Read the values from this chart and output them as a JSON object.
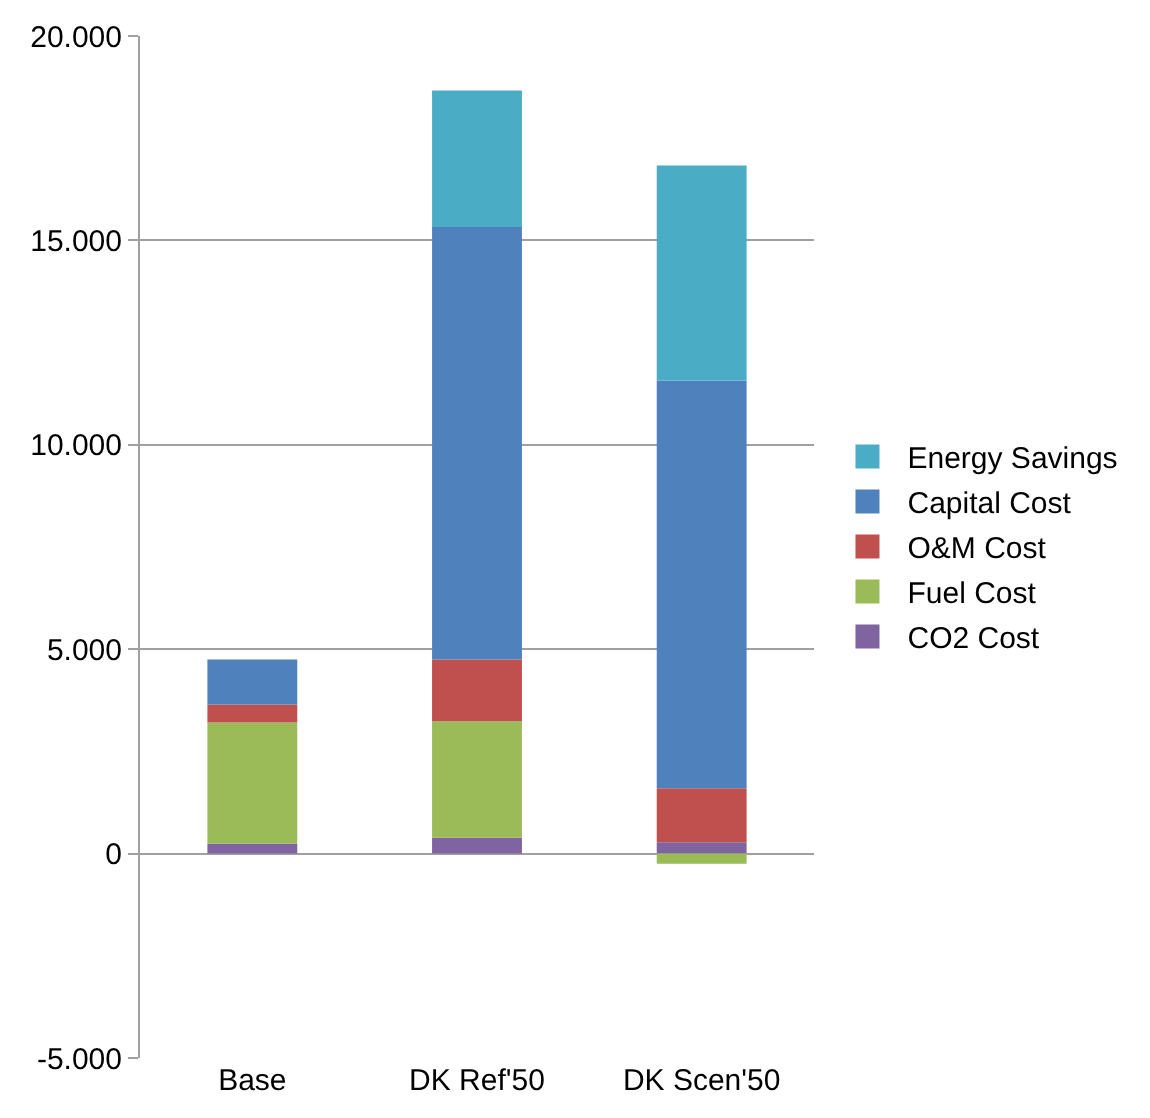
{
  "chart_data": {
    "type": "bar",
    "stacked": true,
    "categories": [
      "Base",
      "DK Ref'50",
      "DK Scen'50"
    ],
    "series": [
      {
        "name": "CO2 Cost",
        "color": "#8064a2",
        "values": [
          240,
          390,
          280
        ]
      },
      {
        "name": "Fuel Cost",
        "color": "#9bbb59",
        "values": [
          2970,
          2850,
          -250
        ]
      },
      {
        "name": "O&M Cost",
        "color": "#c0504d",
        "values": [
          440,
          1510,
          1320
        ]
      },
      {
        "name": "Capital Cost",
        "color": "#4f81bd",
        "values": [
          1100,
          10580,
          9970
        ]
      },
      {
        "name": "Energy Savings",
        "color": "#4bacc6",
        "values": [
          null,
          3340,
          5260
        ]
      }
    ],
    "ylim": [
      -5000,
      20000
    ],
    "yticks": [
      {
        "value": -5000,
        "label": "-5.000"
      },
      {
        "value": 0,
        "label": "0"
      },
      {
        "value": 5000,
        "label": "5.000"
      },
      {
        "value": 10000,
        "label": "10.000"
      },
      {
        "value": 15000,
        "label": "15.000"
      },
      {
        "value": 20000,
        "label": "20.000"
      }
    ],
    "grid": "y",
    "legend": "right"
  }
}
